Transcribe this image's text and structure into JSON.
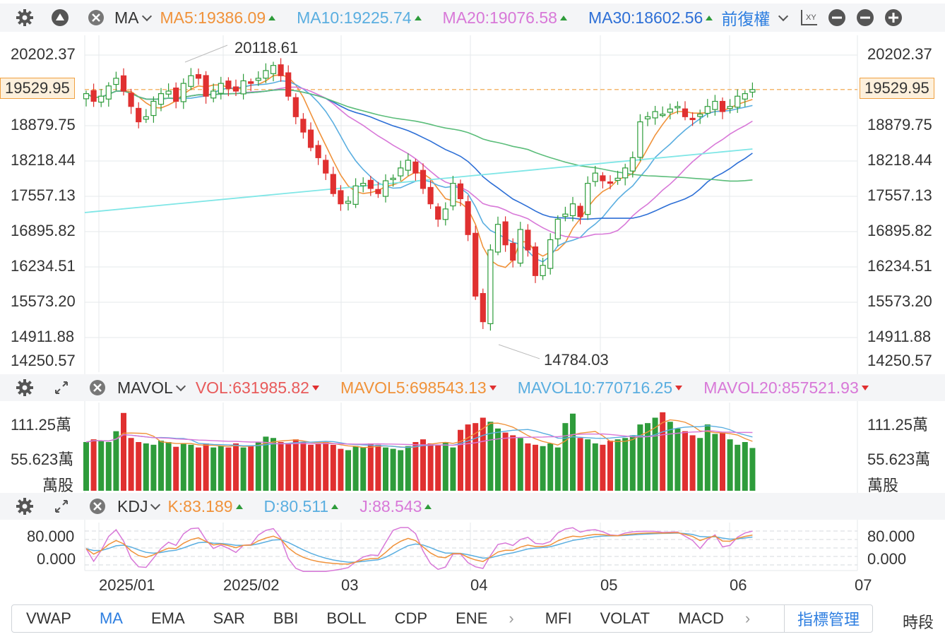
{
  "main_bar": {
    "indicator": "MA",
    "ma5": "MA5:19386.09",
    "ma10": "MA10:19225.74",
    "ma20": "MA20:19076.58",
    "ma30": "MA30:18602.56",
    "adjust": "前復權",
    "xy_icon_label": "XY"
  },
  "vol_bar": {
    "indicator": "MAVOL",
    "vol": "VOL:631985.82",
    "mavol5": "MAVOL5:698543.13",
    "mavol10": "MAVOL10:770716.25",
    "mavol20": "MAVOL20:857521.93"
  },
  "kdj_bar": {
    "indicator": "KDJ",
    "k": "K:83.189",
    "d": "D:80.511",
    "j": "J:88.543"
  },
  "colors": {
    "up": "#2e9c3b",
    "down": "#e03030",
    "ma5": "#f0923a",
    "ma10": "#5aaee0",
    "ma20": "#d878d8",
    "ma30": "#2d6fd6",
    "ma60": "#5bbd7a",
    "ma120": "#7fe6e6",
    "accent": "#2d7ee0"
  },
  "price_axis": {
    "ticks": [
      "20202.37",
      "19529.95",
      "18879.75",
      "18218.44",
      "17557.13",
      "16895.82",
      "16234.51",
      "15573.20",
      "14911.88",
      "14250.57"
    ],
    "last_price": "19529.95",
    "high_label": "20118.61",
    "low_label": "14784.03"
  },
  "vol_axis": {
    "ticks": [
      "111.25萬",
      "55.623萬"
    ],
    "unit": "萬股"
  },
  "kdj_axis": {
    "ticks": [
      "80.000",
      "0.000"
    ]
  },
  "time_axis": {
    "labels": [
      "2025/01",
      "2025/02",
      "03",
      "04",
      "05",
      "06",
      "07"
    ]
  },
  "tabs": {
    "items": [
      "VWAP",
      "MA",
      "EMA",
      "SAR",
      "BBI",
      "BOLL",
      "CDP",
      "ENE"
    ],
    "items2": [
      "MFI",
      "VOLAT",
      "MACD"
    ],
    "active": "MA",
    "manage": "指標管理",
    "period": "時段"
  },
  "chart_data": {
    "type": "candlestick",
    "ylim": [
      14250.57,
      20202.37
    ],
    "high": 20118.61,
    "low": 14784.03,
    "last": 19529.95,
    "closes": [
      19450,
      19300,
      19400,
      19600,
      19750,
      19500,
      19200,
      18900,
      19000,
      19300,
      19450,
      19500,
      19300,
      19650,
      19800,
      19750,
      19400,
      19500,
      19650,
      19550,
      19500,
      19700,
      19650,
      19750,
      19900,
      20000,
      19800,
      19400,
      19000,
      18700,
      18400,
      18200,
      17900,
      17500,
      17300,
      17350,
      17650,
      17700,
      17600,
      17500,
      17750,
      17800,
      18000,
      18150,
      17900,
      17600,
      17300,
      17000,
      17200,
      17700,
      17400,
      16700,
      15500,
      15000,
      16400,
      16900,
      16500,
      16200,
      16800,
      16400,
      15900,
      16100,
      16600,
      17000,
      17100,
      17300,
      17050,
      17700,
      17900,
      17750,
      17700,
      17800,
      18000,
      18200,
      18900,
      19000,
      19100,
      19050,
      19150,
      19200,
      19000,
      18950,
      19050,
      19200,
      19300,
      19100,
      19200,
      19400,
      19450,
      19530
    ],
    "volumes": [
      720,
      760,
      740,
      720,
      880,
      1150,
      780,
      720,
      700,
      680,
      740,
      720,
      650,
      700,
      680,
      640,
      700,
      640,
      660,
      640,
      700,
      640,
      660,
      720,
      800,
      780,
      720,
      700,
      760,
      720,
      680,
      700,
      720,
      680,
      620,
      600,
      660,
      640,
      700,
      680,
      640,
      620,
      600,
      660,
      720,
      760,
      700,
      680,
      720,
      640,
      900,
      980,
      1000,
      1080,
      1020,
      920,
      860,
      820,
      780,
      700,
      680,
      660,
      700,
      640,
      1000,
      1140,
      780,
      760,
      700,
      680,
      740,
      760,
      780,
      820,
      980,
      1000,
      1080,
      1160,
      1020,
      920,
      880,
      820,
      780,
      980,
      840,
      860,
      760,
      680,
      720,
      632
    ],
    "volume_unit": "萬股",
    "ma_last": {
      "MA5": 19386.09,
      "MA10": 19225.74,
      "MA20": 19076.58,
      "MA30": 18602.56
    },
    "mavol_last": {
      "VOL": 631985.82,
      "MAVOL5": 698543.13,
      "MAVOL10": 770716.25,
      "MAVOL20": 857521.93
    },
    "kdj_last": {
      "K": 83.189,
      "D": 80.511,
      "J": 88.543
    }
  }
}
